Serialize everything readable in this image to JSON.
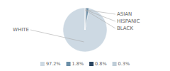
{
  "chart_data": {
    "type": "pie",
    "categories": [
      "WHITE",
      "ASIAN",
      "HISPANIC",
      "BLACK"
    ],
    "values": [
      97.2,
      1.8,
      0.8,
      0.3
    ],
    "value_labels": [
      "97.2%",
      "1.8%",
      "0.8%",
      "0.3%"
    ],
    "colors": [
      "#cdd9e3",
      "#6b8fa8",
      "#2b4560",
      "#bfcdd8"
    ],
    "legend": "bottom"
  }
}
